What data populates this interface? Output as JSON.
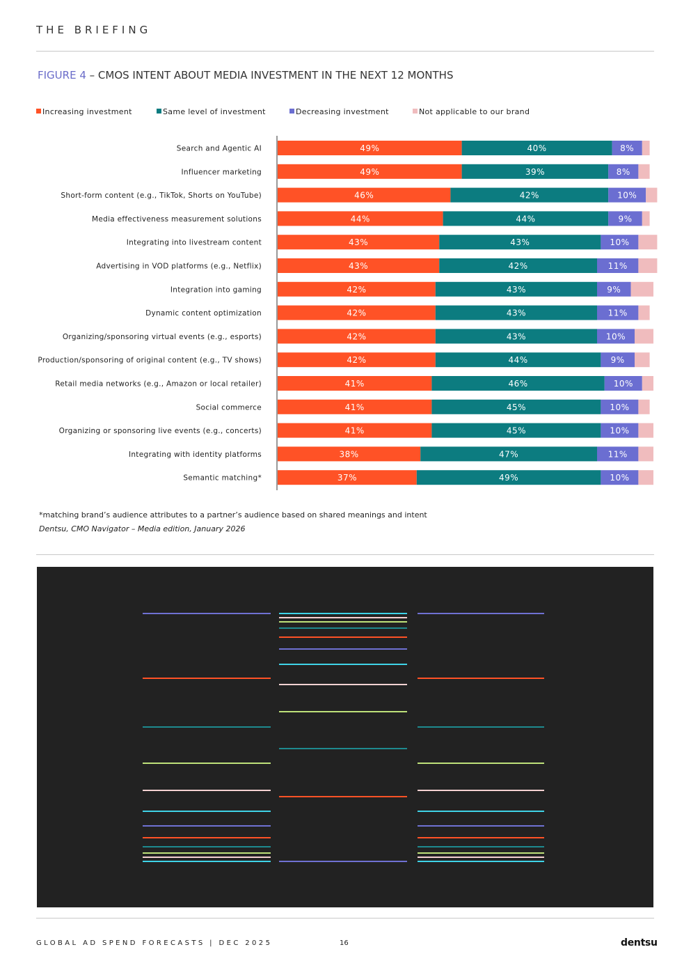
{
  "header": {
    "title": "THE BRIEFING"
  },
  "figure": {
    "number": "FIGURE 4",
    "separator": " – ",
    "title": "CMOS INTENT ABOUT MEDIA INVESTMENT IN THE NEXT 12 MONTHS"
  },
  "colors": {
    "increasing": "#ff5226",
    "same": "#0c7c80",
    "decreasing": "#6b6ed1",
    "na": "#f0bcbe",
    "figure_accent": "#6a6cc9",
    "panel": "#222222"
  },
  "chart_data": {
    "type": "bar",
    "orientation": "horizontal",
    "stacked": true,
    "legend_position": "top",
    "title": "CMOS INTENT ABOUT MEDIA INVESTMENT IN THE NEXT 12 MONTHS",
    "xlim": [
      0,
      100
    ],
    "categories": [
      "Search and Agentic AI",
      "Influencer marketing",
      "Short-form content (e.g., TikTok, Shorts on YouTube)",
      "Media effectiveness measurement solutions",
      "Integrating into livestream content",
      "Advertising in VOD platforms (e.g., Netflix)",
      "Integration into gaming",
      "Dynamic content optimization",
      "Organizing/sponsoring virtual events (e.g., esports)",
      "Production/sponsoring of original content (e.g., TV shows)",
      "Retail media networks (e.g., Amazon or local retailer)",
      "Social commerce",
      "Organizing or sponsoring live events (e.g., concerts)",
      "Integrating with identity platforms",
      "Semantic matching*"
    ],
    "series": [
      {
        "name": "Increasing investment",
        "key": "increasing",
        "values": [
          49,
          49,
          46,
          44,
          43,
          43,
          42,
          42,
          42,
          42,
          41,
          41,
          41,
          38,
          37
        ],
        "labels": [
          "49%",
          "49%",
          "46%",
          "44%",
          "43%",
          "43%",
          "42%",
          "42%",
          "42%",
          "42%",
          "41%",
          "41%",
          "41%",
          "38%",
          "37%"
        ]
      },
      {
        "name": "Same level of investment",
        "key": "same",
        "values": [
          40,
          39,
          42,
          44,
          43,
          42,
          43,
          43,
          43,
          44,
          46,
          45,
          45,
          47,
          49
        ],
        "labels": [
          "40%",
          "39%",
          "42%",
          "44%",
          "43%",
          "42%",
          "43%",
          "43%",
          "43%",
          "44%",
          "46%",
          "45%",
          "45%",
          "47%",
          "49%"
        ]
      },
      {
        "name": "Decreasing investment",
        "key": "decreasing",
        "values": [
          8,
          8,
          10,
          9,
          10,
          11,
          9,
          11,
          10,
          9,
          10,
          10,
          10,
          11,
          10
        ],
        "labels": [
          "8%",
          "8%",
          "10%",
          "9%",
          "10%",
          "11%",
          "9%",
          "11%",
          "10%",
          "9%",
          "10%",
          "10%",
          "10%",
          "11%",
          "10%"
        ]
      },
      {
        "name": "Not applicable to our brand",
        "key": "na",
        "values": [
          2,
          3,
          3,
          2,
          5,
          5,
          6,
          3,
          5,
          4,
          3,
          3,
          4,
          4,
          4
        ],
        "labels": [
          "",
          "",
          "",
          "",
          "",
          "",
          "",
          "",
          "",
          "",
          "",
          "",
          "",
          "",
          ""
        ]
      }
    ]
  },
  "footnote": "*matching brand’s audience attributes to a partner’s audience based on shared meanings and intent",
  "source": "Dentsu, CMO Navigator – Media edition, January 2026",
  "footer": {
    "left": "GLOBAL AD SPEND FORECASTS | DEC 2025",
    "page": "16",
    "logo": "dentsu"
  }
}
